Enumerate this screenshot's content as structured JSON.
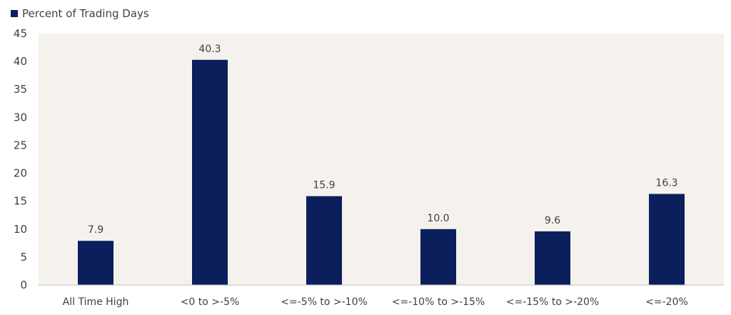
{
  "chart_data": {
    "type": "bar",
    "categories": [
      "All Time High",
      "<0 to >-5%",
      "<=-5% to >-10%",
      "<=-10% to >-15%",
      "<=-15% to >-20%",
      "<=-20%"
    ],
    "series": [
      {
        "name": "Percent of Trading Days",
        "values": [
          7.9,
          40.3,
          15.9,
          10.0,
          9.6,
          16.3
        ],
        "color": "#0b1f5c"
      }
    ],
    "data_labels": [
      "7.9",
      "40.3",
      "15.9",
      "10.0",
      "9.6",
      "16.3"
    ],
    "title": "",
    "xlabel": "",
    "ylabel": "",
    "ylim": [
      0,
      45
    ],
    "yticks": [
      0,
      5,
      10,
      15,
      20,
      25,
      30,
      35,
      40,
      45
    ],
    "grid": false,
    "legend": "top-left",
    "plot_background": "#f5f1ec"
  }
}
